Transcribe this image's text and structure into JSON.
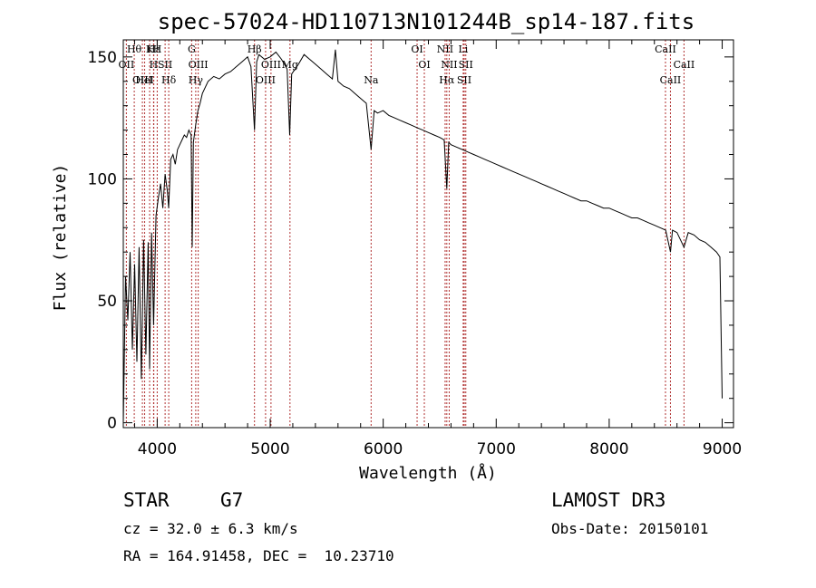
{
  "chart_data": {
    "type": "line",
    "title": "spec-57024-HD110713N101244B_sp14-187.fits",
    "xlabel": "Wavelength (Å)",
    "ylabel": "Flux (relative)",
    "xlim": [
      3700,
      9100
    ],
    "ylim": [
      -2,
      157
    ],
    "xticks": [
      4000,
      5000,
      6000,
      7000,
      8000,
      9000
    ],
    "yticks": [
      0,
      50,
      100,
      150
    ],
    "series": [
      {
        "name": "flux",
        "x": [
          3700,
          3720,
          3740,
          3760,
          3780,
          3800,
          3820,
          3840,
          3860,
          3880,
          3900,
          3920,
          3933,
          3950,
          3968,
          3990,
          4010,
          4030,
          4050,
          4070,
          4090,
          4101,
          4120,
          4140,
          4160,
          4180,
          4200,
          4220,
          4240,
          4260,
          4280,
          4300,
          4310,
          4320,
          4340,
          4360,
          4380,
          4400,
          4450,
          4500,
          4550,
          4600,
          4650,
          4700,
          4750,
          4800,
          4830,
          4861,
          4880,
          4900,
          4950,
          5000,
          5050,
          5100,
          5150,
          5172,
          5190,
          5250,
          5300,
          5350,
          5400,
          5450,
          5500,
          5550,
          5577,
          5600,
          5650,
          5700,
          5750,
          5800,
          5850,
          5893,
          5920,
          5950,
          6000,
          6050,
          6100,
          6150,
          6200,
          6250,
          6300,
          6350,
          6400,
          6450,
          6500,
          6540,
          6563,
          6580,
          6600,
          6650,
          6700,
          6750,
          6800,
          6850,
          6900,
          6950,
          7000,
          7050,
          7100,
          7150,
          7200,
          7250,
          7300,
          7350,
          7400,
          7450,
          7500,
          7550,
          7600,
          7650,
          7700,
          7750,
          7800,
          7850,
          7900,
          7950,
          8000,
          8050,
          8100,
          8150,
          8200,
          8250,
          8300,
          8350,
          8400,
          8450,
          8500,
          8542,
          8560,
          8600,
          8662,
          8700,
          8750,
          8800,
          8850,
          8900,
          8950,
          8980,
          9000
        ],
        "values": [
          0,
          60,
          42,
          70,
          30,
          65,
          25,
          72,
          18,
          75,
          28,
          74,
          22,
          78,
          40,
          85,
          92,
          98,
          88,
          102,
          95,
          88,
          108,
          110,
          106,
          112,
          114,
          116,
          118,
          117,
          120,
          118,
          72,
          115,
          122,
          128,
          131,
          135,
          140,
          142,
          141,
          143,
          144,
          146,
          148,
          150,
          146,
          120,
          148,
          151,
          149,
          150,
          152,
          149,
          145,
          118,
          143,
          147,
          151,
          149,
          147,
          145,
          143,
          141,
          153,
          140,
          138,
          137,
          135,
          133,
          131,
          112,
          128,
          127,
          128,
          126,
          125,
          124,
          123,
          122,
          121,
          120,
          119,
          118,
          117,
          116,
          96,
          115,
          114,
          113,
          112,
          111,
          110,
          109,
          108,
          107,
          106,
          105,
          104,
          103,
          102,
          101,
          100,
          99,
          98,
          97,
          96,
          95,
          94,
          93,
          92,
          91,
          91,
          90,
          89,
          88,
          88,
          87,
          86,
          85,
          84,
          84,
          83,
          82,
          81,
          80,
          79,
          70,
          79,
          78,
          72,
          78,
          77,
          75,
          74,
          72,
          70,
          68,
          10
        ]
      }
    ],
    "lines": [
      {
        "name": "Hθ",
        "x": 3797
      },
      {
        "name": "OII",
        "x": 3727
      },
      {
        "name": "OIII",
        "x": 3869
      },
      {
        "name": "K",
        "x": 3933
      },
      {
        "name": "H",
        "x": 3968
      },
      {
        "name": "HeI",
        "x": 3889
      },
      {
        "name": "Hε",
        "x": 3970
      },
      {
        "name": "SII",
        "x": 4070
      },
      {
        "name": "Hδ",
        "x": 4102
      },
      {
        "name": "H",
        "x": 4000
      },
      {
        "name": "OIII",
        "x": 4363
      },
      {
        "name": "Hγ",
        "x": 4341
      },
      {
        "name": "G",
        "x": 4305
      },
      {
        "name": "OIII",
        "x": 5007
      },
      {
        "name": "OIII",
        "x": 4959
      },
      {
        "name": "Hβ",
        "x": 4861
      },
      {
        "name": "Mg",
        "x": 5175
      },
      {
        "name": "Na",
        "x": 5893
      },
      {
        "name": "OI",
        "x": 6300
      },
      {
        "name": "OI",
        "x": 6364
      },
      {
        "name": "Hα",
        "x": 6563
      },
      {
        "name": "NII",
        "x": 6548
      },
      {
        "name": "NII",
        "x": 6584
      },
      {
        "name": "SII",
        "x": 6717
      },
      {
        "name": "Li",
        "x": 6708
      },
      {
        "name": "SII",
        "x": 6731
      },
      {
        "name": "CaII",
        "x": 8542
      },
      {
        "name": "CaII",
        "x": 8498
      },
      {
        "name": "CaII",
        "x": 8662
      }
    ]
  },
  "info": {
    "object_class": "STAR",
    "subclass": "G7",
    "survey": "LAMOST DR3",
    "redshift_text": "cz = 32.0 ± 6.3 km/s",
    "obs_date": "Obs-Date: 20150101",
    "coords": "RA = 164.91458, DEC =  10.23710"
  },
  "colors": {
    "spectrum": "#000000",
    "line_markers": "#b03030",
    "axes": "#000000"
  }
}
